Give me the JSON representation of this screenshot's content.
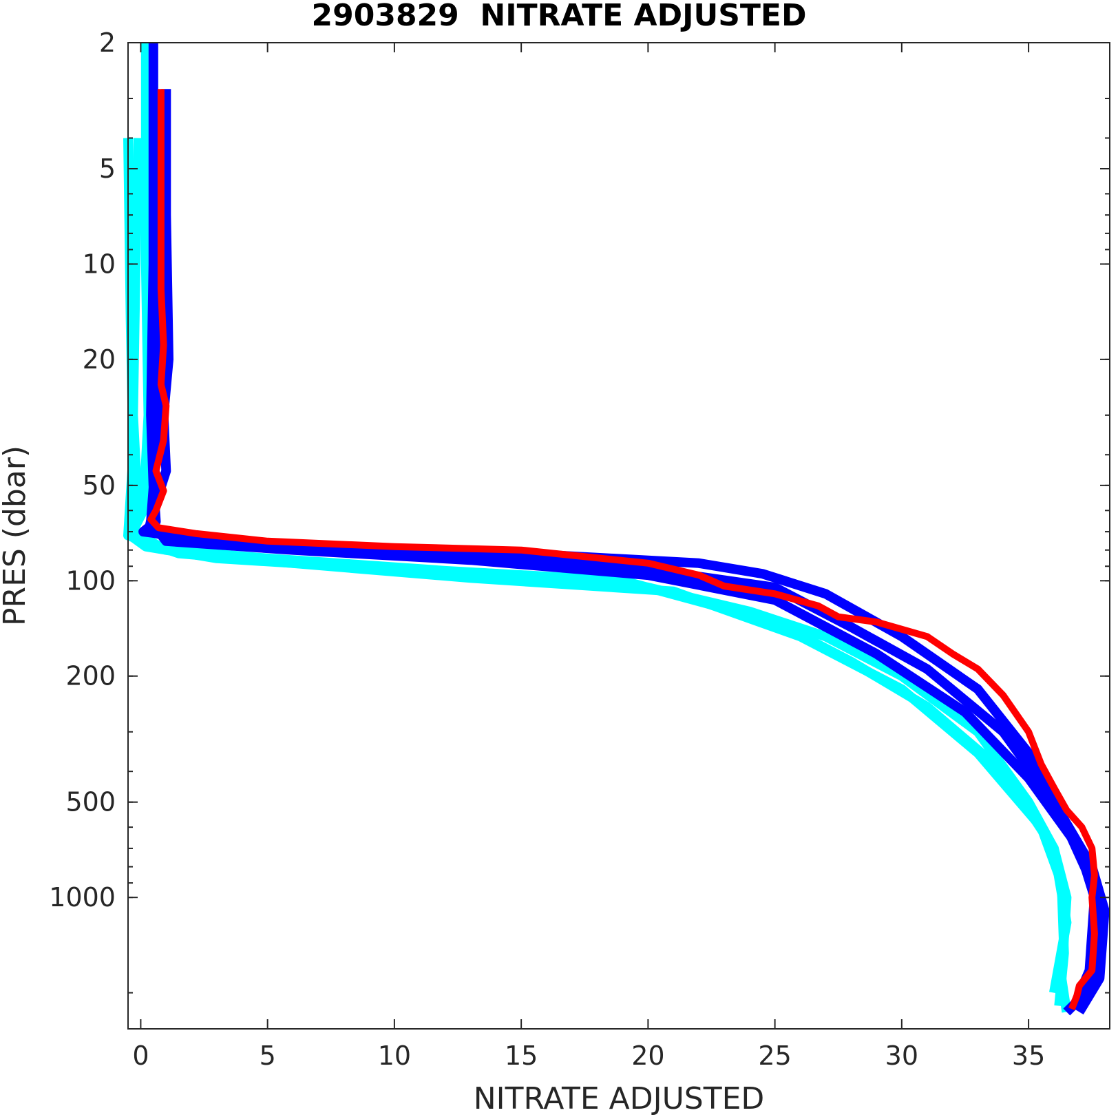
{
  "chart_data": {
    "type": "line",
    "title": "2903829  NITRATE ADJUSTED",
    "xlabel": "NITRATE ADJUSTED",
    "ylabel": "PRES (dbar)",
    "xlim": [
      -0.5,
      38.2
    ],
    "ylim": [
      2,
      2600
    ],
    "y_scale": "log",
    "y_reversed": true,
    "grid": false,
    "x_ticks": [
      0,
      5,
      10,
      15,
      20,
      25,
      30,
      35
    ],
    "y_ticks": [
      2,
      5,
      10,
      20,
      50,
      100,
      200,
      500,
      1000
    ],
    "series": [
      {
        "color": "#00FFFF",
        "values": [
          [
            0.2,
            2
          ],
          [
            0.2,
            10
          ],
          [
            0.3,
            30
          ],
          [
            0.1,
            60
          ],
          [
            -0.4,
            72
          ],
          [
            0.2,
            78
          ],
          [
            3,
            85
          ],
          [
            8,
            90
          ],
          [
            14,
            95
          ],
          [
            20,
            105
          ],
          [
            24,
            125
          ],
          [
            27,
            150
          ],
          [
            30,
            200
          ],
          [
            33,
            300
          ],
          [
            35,
            500
          ],
          [
            36,
            700
          ],
          [
            36.5,
            1000
          ],
          [
            36.3,
            1800
          ],
          [
            36.5,
            2300
          ]
        ]
      },
      {
        "color": "#00FFFF",
        "values": [
          [
            -0.1,
            4
          ],
          [
            -0.2,
            10
          ],
          [
            -0.3,
            30
          ],
          [
            -0.1,
            60
          ],
          [
            -0.3,
            70
          ],
          [
            1,
            80
          ],
          [
            5,
            85
          ],
          [
            12,
            93
          ],
          [
            19,
            100
          ],
          [
            25,
            135
          ],
          [
            28,
            180
          ],
          [
            31,
            250
          ],
          [
            34,
            400
          ],
          [
            36,
            700
          ],
          [
            36.5,
            1200
          ],
          [
            36,
            2000
          ]
        ]
      },
      {
        "color": "#00FFFF",
        "values": [
          [
            -0.5,
            4
          ],
          [
            -0.4,
            15
          ],
          [
            -0.3,
            40
          ],
          [
            -0.5,
            72
          ],
          [
            1.5,
            82
          ],
          [
            6,
            88
          ],
          [
            13,
            98
          ],
          [
            21,
            108
          ],
          [
            26,
            150
          ],
          [
            30,
            220
          ],
          [
            33,
            350
          ],
          [
            35.5,
            600
          ],
          [
            36.3,
            900
          ],
          [
            36.4,
            1500
          ],
          [
            36.2,
            2200
          ]
        ]
      },
      {
        "color": "#0000FF",
        "values": [
          [
            0.5,
            2
          ],
          [
            0.5,
            10
          ],
          [
            0.4,
            30
          ],
          [
            0.5,
            50
          ],
          [
            0.6,
            65
          ],
          [
            0.1,
            70
          ],
          [
            3,
            75
          ],
          [
            8,
            78
          ],
          [
            15,
            82
          ],
          [
            22,
            88
          ],
          [
            24.5,
            95
          ],
          [
            27,
            110
          ],
          [
            30,
            150
          ],
          [
            33,
            220
          ],
          [
            35,
            350
          ],
          [
            36.5,
            600
          ],
          [
            37.5,
            900
          ],
          [
            37.8,
            1200
          ],
          [
            37.6,
            1800
          ],
          [
            37,
            2100
          ],
          [
            36.5,
            2300
          ]
        ]
      },
      {
        "color": "#0000FF",
        "values": [
          [
            1,
            2.8
          ],
          [
            1,
            7
          ],
          [
            1.1,
            20
          ],
          [
            0.9,
            30
          ],
          [
            1,
            45
          ],
          [
            0.5,
            60
          ],
          [
            0.3,
            70
          ],
          [
            2,
            75
          ],
          [
            7,
            80
          ],
          [
            14,
            85
          ],
          [
            20,
            92
          ],
          [
            25,
            105
          ],
          [
            28,
            140
          ],
          [
            31,
            190
          ],
          [
            34,
            300
          ],
          [
            36,
            500
          ],
          [
            37.5,
            800
          ],
          [
            38,
            1100
          ],
          [
            37.8,
            1800
          ],
          [
            37,
            2300
          ]
        ]
      },
      {
        "color": "#0000FF",
        "values": [
          [
            0.8,
            5
          ],
          [
            0.8,
            20
          ],
          [
            0.6,
            40
          ],
          [
            0.4,
            65
          ],
          [
            1,
            75
          ],
          [
            6,
            80
          ],
          [
            13,
            86
          ],
          [
            20,
            96
          ],
          [
            25,
            115
          ],
          [
            29,
            170
          ],
          [
            32.5,
            260
          ],
          [
            35,
            420
          ],
          [
            37,
            700
          ],
          [
            37.6,
            1000
          ],
          [
            37.4,
            1700
          ],
          [
            36.8,
            2200
          ]
        ]
      },
      {
        "color": "#FF0000",
        "values": [
          [
            0.8,
            2.8
          ],
          [
            0.8,
            6
          ],
          [
            0.8,
            12
          ],
          [
            0.9,
            18
          ],
          [
            0.8,
            24
          ],
          [
            1,
            28
          ],
          [
            0.9,
            36
          ],
          [
            0.6,
            45
          ],
          [
            0.9,
            52
          ],
          [
            0.6,
            60
          ],
          [
            0.4,
            64
          ],
          [
            0.7,
            68
          ],
          [
            2.2,
            71
          ],
          [
            5,
            75
          ],
          [
            10,
            78
          ],
          [
            15,
            80
          ],
          [
            20,
            88
          ],
          [
            22,
            96
          ],
          [
            23,
            104
          ],
          [
            25,
            110
          ],
          [
            26.7,
            120
          ],
          [
            27.5,
            130
          ],
          [
            29,
            135
          ],
          [
            31,
            150
          ],
          [
            32,
            170
          ],
          [
            33,
            190
          ],
          [
            34,
            230
          ],
          [
            35,
            300
          ],
          [
            35.5,
            380
          ],
          [
            36,
            450
          ],
          [
            36.5,
            530
          ],
          [
            37.1,
            600
          ],
          [
            37.5,
            700
          ],
          [
            37.6,
            850
          ],
          [
            37.5,
            1000
          ],
          [
            37.6,
            1300
          ],
          [
            37.5,
            1700
          ],
          [
            37,
            1900
          ],
          [
            36.9,
            2050
          ],
          [
            36.7,
            2250
          ]
        ]
      }
    ]
  }
}
